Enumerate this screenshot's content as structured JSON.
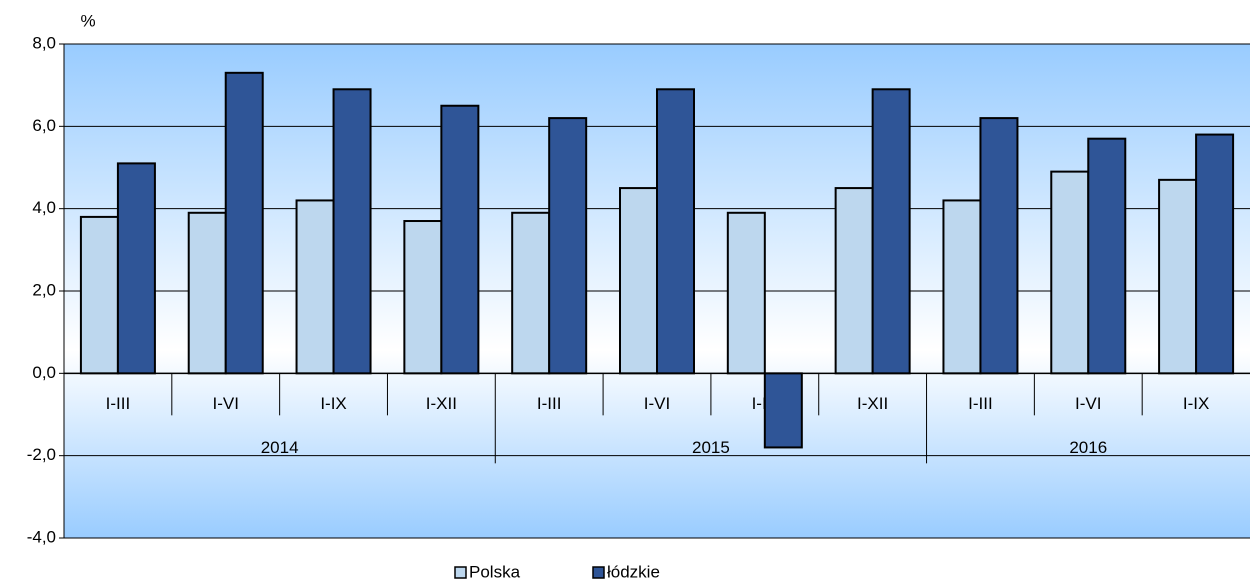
{
  "chart_data": {
    "type": "bar",
    "y_unit": "%",
    "groups": [
      {
        "name": "2014",
        "categories": [
          "I-III",
          "I-VI",
          "I-IX",
          "I-XII"
        ]
      },
      {
        "name": "2015",
        "categories": [
          "I-III",
          "I-VI",
          "I-IX",
          "I-XII"
        ]
      },
      {
        "name": "2016",
        "categories": [
          "I-III",
          "I-VI",
          "I-IX"
        ]
      }
    ],
    "series": [
      {
        "name": "Polska",
        "color": "#bdd7ee",
        "values": [
          3.8,
          3.9,
          4.2,
          3.7,
          3.9,
          4.5,
          3.9,
          4.5,
          4.2,
          4.9,
          4.7
        ]
      },
      {
        "name": "łódzkie",
        "color": "#2f5597",
        "values": [
          5.1,
          7.3,
          6.9,
          6.5,
          6.2,
          6.9,
          -1.8,
          6.9,
          6.2,
          5.7,
          5.8
        ]
      }
    ],
    "ylim": [
      -4,
      8
    ],
    "yticks": [
      {
        "value": -4,
        "label": "-4,0"
      },
      {
        "value": -2,
        "label": "-2,0"
      },
      {
        "value": 0,
        "label": "0,0"
      },
      {
        "value": 2,
        "label": "2,0"
      },
      {
        "value": 4,
        "label": "4,0"
      },
      {
        "value": 6,
        "label": "6,0"
      },
      {
        "value": 8,
        "label": "8,0"
      }
    ],
    "grid": true,
    "legend": "bottom"
  }
}
